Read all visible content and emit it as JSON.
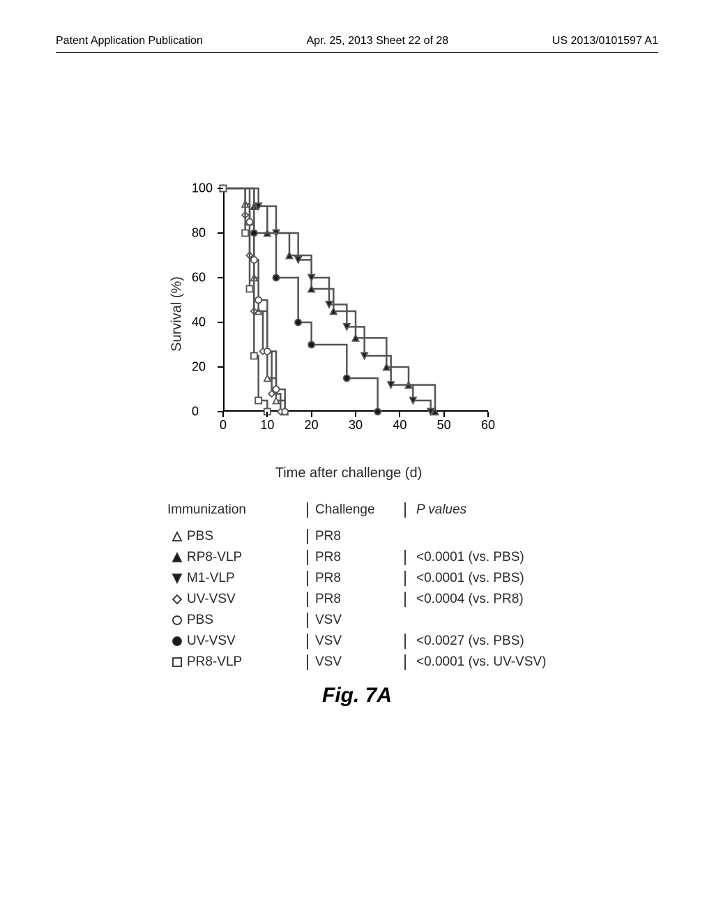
{
  "header": {
    "left": "Patent Application Publication",
    "middle": "Apr. 25, 2013  Sheet 22 of 28",
    "right": "US 2013/0101597 A1"
  },
  "chart": {
    "type": "survival-step",
    "y_label": "Survival (%)",
    "x_label": "Time after challenge (d)",
    "xlim": [
      0,
      60
    ],
    "ylim": [
      0,
      100
    ],
    "x_ticks": [
      0,
      10,
      20,
      30,
      40,
      50,
      60
    ],
    "y_ticks": [
      0,
      20,
      40,
      60,
      80,
      100
    ],
    "line_width": 2.5,
    "line_color": "#555555",
    "marker_size": 9,
    "series": [
      {
        "name": "PBS/PR8",
        "marker": "triangle-open",
        "points": [
          [
            0,
            100
          ],
          [
            5,
            100
          ],
          [
            5,
            93
          ],
          [
            6,
            93
          ],
          [
            6,
            85
          ],
          [
            7,
            85
          ],
          [
            7,
            60
          ],
          [
            8,
            60
          ],
          [
            8,
            45
          ],
          [
            10,
            45
          ],
          [
            10,
            15
          ],
          [
            12,
            15
          ],
          [
            12,
            5
          ],
          [
            14,
            5
          ],
          [
            14,
            0
          ]
        ]
      },
      {
        "name": "RP8-VLP/PR8",
        "marker": "triangle-filled",
        "points": [
          [
            0,
            100
          ],
          [
            7,
            100
          ],
          [
            7,
            92
          ],
          [
            10,
            92
          ],
          [
            10,
            80
          ],
          [
            15,
            80
          ],
          [
            15,
            70
          ],
          [
            20,
            70
          ],
          [
            20,
            55
          ],
          [
            25,
            55
          ],
          [
            25,
            45
          ],
          [
            30,
            45
          ],
          [
            30,
            33
          ],
          [
            37,
            33
          ],
          [
            37,
            20
          ],
          [
            42,
            20
          ],
          [
            42,
            12
          ],
          [
            48,
            12
          ],
          [
            48,
            0
          ]
        ]
      },
      {
        "name": "M1-VLP/PR8",
        "marker": "triangle-down-filled",
        "points": [
          [
            0,
            100
          ],
          [
            8,
            100
          ],
          [
            8,
            92
          ],
          [
            12,
            92
          ],
          [
            12,
            80
          ],
          [
            17,
            80
          ],
          [
            17,
            68
          ],
          [
            20,
            68
          ],
          [
            20,
            60
          ],
          [
            24,
            60
          ],
          [
            24,
            48
          ],
          [
            28,
            48
          ],
          [
            28,
            38
          ],
          [
            32,
            38
          ],
          [
            32,
            25
          ],
          [
            38,
            25
          ],
          [
            38,
            12
          ],
          [
            43,
            12
          ],
          [
            43,
            5
          ],
          [
            47,
            5
          ],
          [
            47,
            0
          ]
        ]
      },
      {
        "name": "UV-VSV/PR8",
        "marker": "diamond-open",
        "points": [
          [
            0,
            100
          ],
          [
            5,
            100
          ],
          [
            5,
            88
          ],
          [
            6,
            88
          ],
          [
            6,
            70
          ],
          [
            7,
            70
          ],
          [
            7,
            45
          ],
          [
            9,
            45
          ],
          [
            9,
            27
          ],
          [
            11,
            27
          ],
          [
            11,
            8
          ],
          [
            13,
            8
          ],
          [
            13,
            0
          ]
        ]
      },
      {
        "name": "PBS/VSV",
        "marker": "circle-open",
        "points": [
          [
            0,
            100
          ],
          [
            6,
            100
          ],
          [
            6,
            85
          ],
          [
            7,
            85
          ],
          [
            7,
            68
          ],
          [
            8,
            68
          ],
          [
            8,
            50
          ],
          [
            10,
            50
          ],
          [
            10,
            27
          ],
          [
            12,
            27
          ],
          [
            12,
            10
          ],
          [
            14,
            10
          ],
          [
            14,
            0
          ]
        ]
      },
      {
        "name": "UV-VSV/VSV",
        "marker": "circle-filled",
        "points": [
          [
            0,
            100
          ],
          [
            7,
            100
          ],
          [
            7,
            80
          ],
          [
            12,
            80
          ],
          [
            12,
            60
          ],
          [
            17,
            60
          ],
          [
            17,
            40
          ],
          [
            20,
            40
          ],
          [
            20,
            30
          ],
          [
            28,
            30
          ],
          [
            28,
            15
          ],
          [
            35,
            15
          ],
          [
            35,
            0
          ]
        ]
      },
      {
        "name": "PR8-VLP/VSV",
        "marker": "square-open",
        "points": [
          [
            0,
            100
          ],
          [
            5,
            100
          ],
          [
            5,
            80
          ],
          [
            6,
            80
          ],
          [
            6,
            55
          ],
          [
            7,
            55
          ],
          [
            7,
            25
          ],
          [
            8,
            25
          ],
          [
            8,
            5
          ],
          [
            10,
            5
          ],
          [
            10,
            0
          ]
        ]
      }
    ]
  },
  "legend": {
    "headers": {
      "immunization": "Immunization",
      "challenge": "Challenge",
      "pvalues": "P values"
    },
    "rows": [
      {
        "marker": "triangle-open",
        "immunization": "PBS",
        "challenge": "PR8",
        "pvalue": ""
      },
      {
        "marker": "triangle-filled",
        "immunization": "RP8-VLP",
        "challenge": "PR8",
        "pvalue": "<0.0001 (vs. PBS)"
      },
      {
        "marker": "triangle-down-filled",
        "immunization": "M1-VLP",
        "challenge": "PR8",
        "pvalue": "<0.0001 (vs. PBS)"
      },
      {
        "marker": "diamond-open",
        "immunization": "UV-VSV",
        "challenge": "PR8",
        "pvalue": "<0.0004 (vs. PR8)"
      },
      {
        "marker": "circle-open",
        "immunization": "PBS",
        "challenge": "VSV",
        "pvalue": ""
      },
      {
        "marker": "circle-filled",
        "immunization": "UV-VSV",
        "challenge": "VSV",
        "pvalue": "<0.0027 (vs. PBS)"
      },
      {
        "marker": "square-open",
        "immunization": "PR8-VLP",
        "challenge": "VSV",
        "pvalue": "<0.0001 (vs. UV-VSV)"
      }
    ]
  },
  "caption": "Fig. 7A",
  "colors": {
    "text": "#2a2a2a",
    "line": "#555555",
    "marker_fill": "#1a1a1a",
    "background": "#ffffff"
  }
}
